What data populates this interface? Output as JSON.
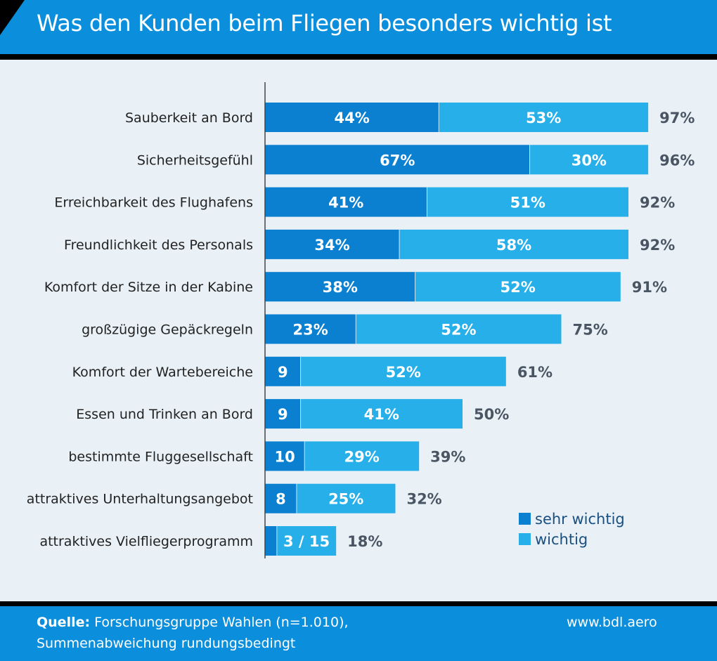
{
  "header": {
    "title": "Was den Kunden beim Fliegen besonders wichtig ist"
  },
  "footer": {
    "source_label": "Quelle:",
    "source_text": " Forschungsgruppe Wahlen (n=1.010),",
    "note": "Summenabweichung rundungsbedingt",
    "website": "www.bdl.aero"
  },
  "chart_data": {
    "type": "bar",
    "orientation": "horizontal",
    "stacked": true,
    "title": "Was den Kunden beim Fliegen besonders wichtig ist",
    "categories": [
      "Sauberkeit an Bord",
      "Sicherheitsgefühl",
      "Erreichbarkeit des Flughafens",
      "Freundlichkeit des Personals",
      "Komfort der Sitze in der Kabine",
      "großzügige Gepäckregeln",
      "Komfort der Wartebereiche",
      "Essen und Trinken an Bord",
      "bestimmte Fluggesellschaft",
      "attraktives Unterhaltungsangebot",
      "attraktives Vielfliegerprogramm"
    ],
    "series": [
      {
        "name": "sehr wichtig",
        "color": "#0b80d0",
        "values": [
          44,
          67,
          41,
          34,
          38,
          23,
          9,
          9,
          10,
          8,
          3
        ],
        "labels": [
          "44%",
          "67%",
          "41%",
          "34%",
          "38%",
          "23%",
          "9",
          "9",
          "10",
          "8",
          ""
        ]
      },
      {
        "name": "wichtig",
        "color": "#27afea",
        "values": [
          53,
          30,
          51,
          58,
          52,
          52,
          52,
          41,
          29,
          25,
          15
        ],
        "labels": [
          "53%",
          "30%",
          "51%",
          "58%",
          "52%",
          "52%",
          "52%",
          "41%",
          "29%",
          "25%",
          "3 / 15"
        ]
      }
    ],
    "totals": [
      "97%",
      "96%",
      "92%",
      "92%",
      "91%",
      "75%",
      "61%",
      "50%",
      "39%",
      "32%",
      "18%"
    ],
    "totals_values": [
      97,
      96,
      92,
      92,
      91,
      75,
      61,
      50,
      39,
      32,
      18
    ],
    "xlim": [
      0,
      100
    ],
    "grid": false,
    "legend_position": "bottom-right"
  }
}
